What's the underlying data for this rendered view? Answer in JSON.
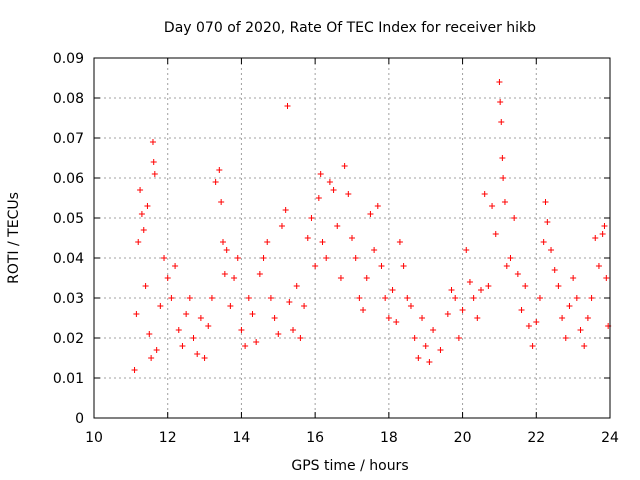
{
  "chart_data": {
    "type": "scatter",
    "title": "Day 070 of 2020, Rate Of TEC Index for receiver hikb",
    "xlabel": "GPS time / hours",
    "ylabel": "ROTI / TECUs",
    "xlim": [
      10,
      24
    ],
    "ylim": [
      0,
      0.09
    ],
    "x_ticks": [
      10,
      12,
      14,
      16,
      18,
      20,
      22,
      24
    ],
    "x_tick_labels": [
      "10",
      "12",
      "14",
      "16",
      "18",
      "20",
      "22",
      "24"
    ],
    "y_ticks": [
      0,
      0.01,
      0.02,
      0.03,
      0.04,
      0.05,
      0.06,
      0.07,
      0.08,
      0.09
    ],
    "y_tick_labels": [
      "0",
      "0.01",
      "0.02",
      "0.03",
      "0.04",
      "0.05",
      "0.06",
      "0.07",
      "0.08",
      "0.09"
    ],
    "grid": true,
    "marker": "plus",
    "color": "#ff0000",
    "series": [
      {
        "values": [
          [
            11.1,
            0.012
          ],
          [
            11.15,
            0.026
          ],
          [
            11.2,
            0.044
          ],
          [
            11.25,
            0.057
          ],
          [
            11.3,
            0.051
          ],
          [
            11.35,
            0.047
          ],
          [
            11.4,
            0.033
          ],
          [
            11.45,
            0.053
          ],
          [
            11.5,
            0.021
          ],
          [
            11.55,
            0.015
          ],
          [
            11.6,
            0.069
          ],
          [
            11.62,
            0.064
          ],
          [
            11.65,
            0.061
          ],
          [
            11.7,
            0.017
          ],
          [
            11.8,
            0.028
          ],
          [
            11.9,
            0.04
          ],
          [
            12.0,
            0.035
          ],
          [
            12.1,
            0.03
          ],
          [
            12.2,
            0.038
          ],
          [
            12.3,
            0.022
          ],
          [
            12.4,
            0.018
          ],
          [
            12.5,
            0.026
          ],
          [
            12.6,
            0.03
          ],
          [
            12.7,
            0.02
          ],
          [
            12.8,
            0.016
          ],
          [
            12.9,
            0.025
          ],
          [
            13.0,
            0.015
          ],
          [
            13.1,
            0.023
          ],
          [
            13.2,
            0.03
          ],
          [
            13.3,
            0.059
          ],
          [
            13.4,
            0.062
          ],
          [
            13.45,
            0.054
          ],
          [
            13.5,
            0.044
          ],
          [
            13.55,
            0.036
          ],
          [
            13.6,
            0.042
          ],
          [
            13.7,
            0.028
          ],
          [
            13.8,
            0.035
          ],
          [
            13.9,
            0.04
          ],
          [
            14.0,
            0.022
          ],
          [
            14.1,
            0.018
          ],
          [
            14.2,
            0.03
          ],
          [
            14.3,
            0.026
          ],
          [
            14.4,
            0.019
          ],
          [
            14.5,
            0.036
          ],
          [
            14.6,
            0.04
          ],
          [
            14.7,
            0.044
          ],
          [
            14.8,
            0.03
          ],
          [
            14.9,
            0.025
          ],
          [
            15.0,
            0.021
          ],
          [
            15.1,
            0.048
          ],
          [
            15.2,
            0.052
          ],
          [
            15.25,
            0.078
          ],
          [
            15.3,
            0.029
          ],
          [
            15.4,
            0.022
          ],
          [
            15.5,
            0.033
          ],
          [
            15.6,
            0.02
          ],
          [
            15.7,
            0.028
          ],
          [
            15.8,
            0.045
          ],
          [
            15.9,
            0.05
          ],
          [
            16.0,
            0.038
          ],
          [
            16.1,
            0.055
          ],
          [
            16.15,
            0.061
          ],
          [
            16.2,
            0.044
          ],
          [
            16.3,
            0.04
          ],
          [
            16.4,
            0.059
          ],
          [
            16.5,
            0.057
          ],
          [
            16.6,
            0.048
          ],
          [
            16.7,
            0.035
          ],
          [
            16.8,
            0.063
          ],
          [
            16.9,
            0.056
          ],
          [
            17.0,
            0.045
          ],
          [
            17.1,
            0.04
          ],
          [
            17.2,
            0.03
          ],
          [
            17.3,
            0.027
          ],
          [
            17.4,
            0.035
          ],
          [
            17.5,
            0.051
          ],
          [
            17.6,
            0.042
          ],
          [
            17.7,
            0.053
          ],
          [
            17.8,
            0.038
          ],
          [
            17.9,
            0.03
          ],
          [
            18.0,
            0.025
          ],
          [
            18.1,
            0.032
          ],
          [
            18.2,
            0.024
          ],
          [
            18.3,
            0.044
          ],
          [
            18.4,
            0.038
          ],
          [
            18.5,
            0.03
          ],
          [
            18.6,
            0.028
          ],
          [
            18.7,
            0.02
          ],
          [
            18.8,
            0.015
          ],
          [
            18.9,
            0.025
          ],
          [
            19.0,
            0.018
          ],
          [
            19.1,
            0.014
          ],
          [
            19.2,
            0.022
          ],
          [
            19.4,
            0.017
          ],
          [
            19.6,
            0.026
          ],
          [
            19.7,
            0.032
          ],
          [
            19.8,
            0.03
          ],
          [
            19.9,
            0.02
          ],
          [
            20.0,
            0.027
          ],
          [
            20.1,
            0.042
          ],
          [
            20.2,
            0.034
          ],
          [
            20.3,
            0.03
          ],
          [
            20.4,
            0.025
          ],
          [
            20.5,
            0.032
          ],
          [
            20.6,
            0.056
          ],
          [
            20.7,
            0.033
          ],
          [
            20.8,
            0.053
          ],
          [
            20.9,
            0.046
          ],
          [
            21.0,
            0.084
          ],
          [
            21.02,
            0.079
          ],
          [
            21.05,
            0.074
          ],
          [
            21.08,
            0.065
          ],
          [
            21.1,
            0.06
          ],
          [
            21.15,
            0.054
          ],
          [
            21.2,
            0.038
          ],
          [
            21.3,
            0.04
          ],
          [
            21.4,
            0.05
          ],
          [
            21.5,
            0.036
          ],
          [
            21.6,
            0.027
          ],
          [
            21.7,
            0.033
          ],
          [
            21.8,
            0.023
          ],
          [
            21.9,
            0.018
          ],
          [
            22.0,
            0.024
          ],
          [
            22.1,
            0.03
          ],
          [
            22.2,
            0.044
          ],
          [
            22.25,
            0.054
          ],
          [
            22.3,
            0.049
          ],
          [
            22.4,
            0.042
          ],
          [
            22.5,
            0.037
          ],
          [
            22.6,
            0.033
          ],
          [
            22.7,
            0.025
          ],
          [
            22.8,
            0.02
          ],
          [
            22.9,
            0.028
          ],
          [
            23.0,
            0.035
          ],
          [
            23.1,
            0.03
          ],
          [
            23.2,
            0.022
          ],
          [
            23.3,
            0.018
          ],
          [
            23.4,
            0.025
          ],
          [
            23.5,
            0.03
          ],
          [
            23.6,
            0.045
          ],
          [
            23.7,
            0.038
          ],
          [
            23.8,
            0.046
          ],
          [
            23.85,
            0.048
          ],
          [
            23.9,
            0.035
          ],
          [
            23.95,
            0.023
          ]
        ]
      }
    ]
  }
}
